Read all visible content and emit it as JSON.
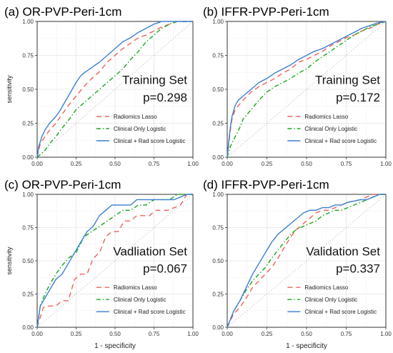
{
  "figure": {
    "colors": {
      "radiomics": "#f0605a",
      "clinical": "#1aa61a",
      "combined": "#3b7fd0",
      "reference": "#bbbbbb"
    },
    "panels_common": {
      "xlabel": "1 - specificity",
      "ylabel": "sensitivity",
      "ticks": [
        "0.00",
        "0.25",
        "0.50",
        "0.75",
        "1.00"
      ]
    }
  },
  "chart_data": [
    {
      "type": "line",
      "panel_label": "(a)",
      "title": "OR-PVP-Peri-1cm",
      "set_label": "Training Set",
      "p_label": "p=0.298",
      "xlim": [
        0,
        1
      ],
      "ylim": [
        0,
        1
      ],
      "grid": true,
      "legend_position": "bottom-right",
      "series": [
        {
          "name": "Radiomics Lasso",
          "style": "dashed",
          "x": [
            0,
            0.01,
            0.02,
            0.05,
            0.08,
            0.12,
            0.15,
            0.2,
            0.25,
            0.3,
            0.35,
            0.4,
            0.45,
            0.5,
            0.55,
            0.6,
            0.65,
            0.7,
            0.75,
            0.8,
            0.85,
            0.9,
            0.95,
            1.0
          ],
          "y": [
            0,
            0.05,
            0.1,
            0.15,
            0.2,
            0.25,
            0.3,
            0.38,
            0.45,
            0.52,
            0.58,
            0.63,
            0.7,
            0.75,
            0.8,
            0.84,
            0.88,
            0.9,
            0.93,
            0.96,
            0.98,
            1.0,
            1.0,
            1.0
          ]
        },
        {
          "name": "Clinical Only Logistic",
          "style": "dotdash",
          "x": [
            0,
            0.02,
            0.05,
            0.08,
            0.12,
            0.15,
            0.2,
            0.25,
            0.3,
            0.35,
            0.4,
            0.45,
            0.5,
            0.55,
            0.6,
            0.65,
            0.7,
            0.75,
            0.8,
            0.85,
            0.9,
            0.95,
            1.0
          ],
          "y": [
            0,
            0.02,
            0.05,
            0.1,
            0.15,
            0.2,
            0.27,
            0.35,
            0.4,
            0.45,
            0.5,
            0.55,
            0.6,
            0.65,
            0.72,
            0.78,
            0.85,
            0.9,
            0.95,
            0.98,
            1.0,
            1.0,
            1.0
          ]
        },
        {
          "name": "Clinical + Rad score Logistic",
          "style": "solid",
          "x": [
            0,
            0.01,
            0.03,
            0.05,
            0.08,
            0.12,
            0.15,
            0.2,
            0.25,
            0.28,
            0.3,
            0.35,
            0.4,
            0.45,
            0.5,
            0.55,
            0.6,
            0.65,
            0.7,
            0.75,
            0.8,
            0.85,
            0.9,
            0.95,
            1.0
          ],
          "y": [
            0,
            0.08,
            0.15,
            0.2,
            0.25,
            0.3,
            0.35,
            0.45,
            0.55,
            0.6,
            0.62,
            0.66,
            0.7,
            0.75,
            0.8,
            0.85,
            0.88,
            0.92,
            0.95,
            0.98,
            1.0,
            1.0,
            1.0,
            1.0,
            1.0
          ]
        }
      ]
    },
    {
      "type": "line",
      "panel_label": "(b)",
      "title": "IFFR-PVP-Peri-1cm",
      "set_label": "Training Set",
      "p_label": "p=0.172",
      "xlim": [
        0,
        1
      ],
      "ylim": [
        0,
        1
      ],
      "grid": true,
      "legend_position": "bottom-right",
      "series": [
        {
          "name": "Radiomics Lasso",
          "style": "dashed",
          "x": [
            0,
            0.01,
            0.02,
            0.03,
            0.05,
            0.07,
            0.1,
            0.15,
            0.2,
            0.25,
            0.3,
            0.35,
            0.4,
            0.45,
            0.5,
            0.55,
            0.6,
            0.65,
            0.7,
            0.75,
            0.8,
            0.85,
            0.9,
            0.95,
            1.0
          ],
          "y": [
            0,
            0.1,
            0.2,
            0.28,
            0.35,
            0.38,
            0.42,
            0.48,
            0.52,
            0.55,
            0.58,
            0.62,
            0.65,
            0.7,
            0.72,
            0.75,
            0.78,
            0.82,
            0.85,
            0.88,
            0.9,
            0.93,
            0.95,
            0.98,
            1.0
          ]
        },
        {
          "name": "Clinical Only Logistic",
          "style": "dotdash",
          "x": [
            0,
            0.02,
            0.05,
            0.08,
            0.1,
            0.15,
            0.2,
            0.25,
            0.3,
            0.35,
            0.4,
            0.45,
            0.5,
            0.55,
            0.6,
            0.65,
            0.7,
            0.75,
            0.8,
            0.85,
            0.9,
            0.95,
            1.0
          ],
          "y": [
            0,
            0.08,
            0.15,
            0.22,
            0.28,
            0.35,
            0.42,
            0.48,
            0.52,
            0.55,
            0.58,
            0.62,
            0.65,
            0.7,
            0.74,
            0.78,
            0.82,
            0.86,
            0.9,
            0.93,
            0.96,
            0.98,
            1.0
          ]
        },
        {
          "name": "Clinical + Rad score Logistic",
          "style": "solid",
          "x": [
            0,
            0.01,
            0.02,
            0.03,
            0.05,
            0.07,
            0.1,
            0.15,
            0.2,
            0.25,
            0.3,
            0.35,
            0.4,
            0.45,
            0.5,
            0.55,
            0.6,
            0.65,
            0.7,
            0.75,
            0.8,
            0.85,
            0.9,
            0.95,
            1.0
          ],
          "y": [
            0,
            0.12,
            0.22,
            0.3,
            0.38,
            0.42,
            0.45,
            0.5,
            0.55,
            0.58,
            0.62,
            0.65,
            0.68,
            0.72,
            0.75,
            0.78,
            0.8,
            0.83,
            0.86,
            0.89,
            0.92,
            0.95,
            0.97,
            0.99,
            1.0
          ]
        }
      ]
    },
    {
      "type": "line",
      "panel_label": "(c)",
      "title": "OR-PVP-Peri-1cm",
      "set_label": "Vadliation Set",
      "p_label": "p=0.067",
      "xlim": [
        0,
        1
      ],
      "ylim": [
        0,
        1
      ],
      "grid": true,
      "legend_position": "bottom-right",
      "series": [
        {
          "name": "Radiomics Lasso",
          "style": "dashed",
          "x": [
            0,
            0.04,
            0.08,
            0.12,
            0.16,
            0.2,
            0.24,
            0.28,
            0.32,
            0.36,
            0.4,
            0.44,
            0.48,
            0.52,
            0.56,
            0.6,
            0.64,
            0.68,
            0.72,
            0.76,
            0.8,
            0.84,
            0.88,
            0.92,
            0.96,
            1.0
          ],
          "y": [
            0,
            0.15,
            0.16,
            0.16,
            0.2,
            0.2,
            0.36,
            0.4,
            0.4,
            0.52,
            0.56,
            0.68,
            0.72,
            0.72,
            0.8,
            0.8,
            0.84,
            0.84,
            0.84,
            0.88,
            0.88,
            0.88,
            0.9,
            0.92,
            1.0,
            1.0
          ]
        },
        {
          "name": "Clinical Only Logistic",
          "style": "dotdash",
          "x": [
            0,
            0.02,
            0.05,
            0.08,
            0.12,
            0.15,
            0.2,
            0.25,
            0.3,
            0.35,
            0.4,
            0.45,
            0.5,
            0.55,
            0.6,
            0.65,
            0.7,
            0.75,
            0.8,
            0.85,
            0.9,
            0.95,
            1.0
          ],
          "y": [
            0,
            0.16,
            0.25,
            0.32,
            0.4,
            0.45,
            0.52,
            0.56,
            0.68,
            0.72,
            0.76,
            0.8,
            0.84,
            0.88,
            0.88,
            0.92,
            0.92,
            0.96,
            0.96,
            0.96,
            1.0,
            1.0,
            1.0
          ]
        },
        {
          "name": "Clinical + Rad score Logistic",
          "style": "solid",
          "x": [
            0,
            0.02,
            0.05,
            0.08,
            0.12,
            0.16,
            0.2,
            0.24,
            0.28,
            0.32,
            0.36,
            0.4,
            0.44,
            0.48,
            0.52,
            0.56,
            0.6,
            0.64,
            0.68,
            0.72,
            0.76,
            0.8,
            0.84,
            0.88,
            0.92,
            0.96,
            1.0
          ],
          "y": [
            0,
            0.16,
            0.22,
            0.28,
            0.36,
            0.4,
            0.48,
            0.56,
            0.64,
            0.72,
            0.76,
            0.84,
            0.88,
            0.92,
            0.92,
            0.92,
            0.92,
            0.96,
            0.96,
            0.96,
            0.96,
            0.96,
            0.96,
            0.96,
            0.98,
            1.0,
            1.0
          ]
        }
      ]
    },
    {
      "type": "line",
      "panel_label": "(d)",
      "title": "IFFR-PVP-Peri-1cm",
      "set_label": "Validation Set",
      "p_label": "p=0.337",
      "xlim": [
        0,
        1
      ],
      "ylim": [
        0,
        1
      ],
      "grid": true,
      "legend_position": "bottom-right",
      "series": [
        {
          "name": "Radiomics Lasso",
          "style": "dashed",
          "x": [
            0,
            0.04,
            0.08,
            0.12,
            0.16,
            0.2,
            0.24,
            0.28,
            0.32,
            0.36,
            0.4,
            0.44,
            0.48,
            0.52,
            0.56,
            0.6,
            0.64,
            0.68,
            0.72,
            0.76,
            0.8,
            0.84,
            0.88,
            0.92,
            0.96,
            1.0
          ],
          "y": [
            0,
            0.1,
            0.15,
            0.22,
            0.3,
            0.35,
            0.4,
            0.45,
            0.52,
            0.6,
            0.68,
            0.74,
            0.78,
            0.82,
            0.86,
            0.88,
            0.88,
            0.9,
            0.92,
            0.94,
            0.95,
            0.96,
            0.98,
            1.0,
            1.0,
            1.0
          ]
        },
        {
          "name": "Clinical Only Logistic",
          "style": "dotdash",
          "x": [
            0,
            0.04,
            0.08,
            0.12,
            0.16,
            0.2,
            0.24,
            0.28,
            0.32,
            0.36,
            0.4,
            0.44,
            0.48,
            0.52,
            0.56,
            0.6,
            0.64,
            0.68,
            0.72,
            0.76,
            0.8,
            0.84,
            0.88,
            0.92,
            0.96,
            1.0
          ],
          "y": [
            0,
            0.12,
            0.2,
            0.28,
            0.35,
            0.4,
            0.45,
            0.52,
            0.58,
            0.64,
            0.7,
            0.74,
            0.76,
            0.78,
            0.8,
            0.84,
            0.86,
            0.88,
            0.88,
            0.9,
            0.92,
            0.94,
            0.96,
            0.98,
            1.0,
            1.0
          ]
        },
        {
          "name": "Clinical + Rad score Logistic",
          "style": "solid",
          "x": [
            0,
            0.04,
            0.08,
            0.12,
            0.16,
            0.2,
            0.24,
            0.28,
            0.32,
            0.36,
            0.4,
            0.44,
            0.48,
            0.52,
            0.56,
            0.6,
            0.64,
            0.68,
            0.72,
            0.76,
            0.8,
            0.84,
            0.88,
            0.92,
            0.96,
            1.0
          ],
          "y": [
            0,
            0.12,
            0.2,
            0.3,
            0.4,
            0.48,
            0.56,
            0.64,
            0.7,
            0.74,
            0.78,
            0.82,
            0.86,
            0.88,
            0.88,
            0.9,
            0.9,
            0.92,
            0.92,
            0.94,
            0.95,
            0.96,
            0.96,
            0.98,
            1.0,
            1.0
          ]
        }
      ]
    }
  ]
}
